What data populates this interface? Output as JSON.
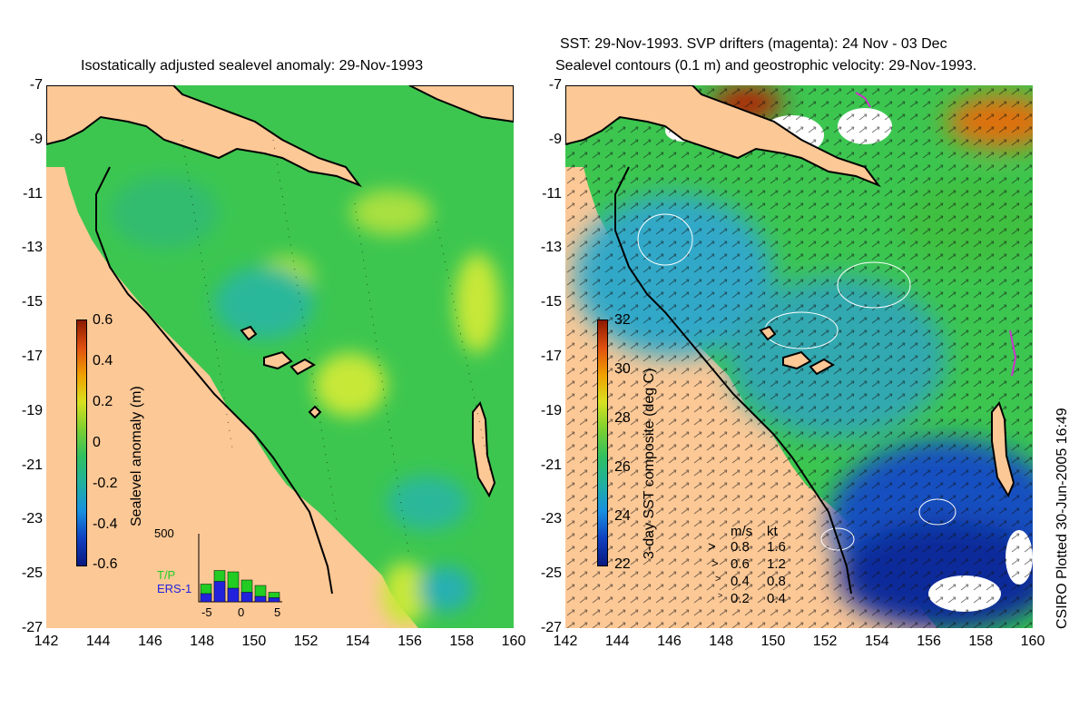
{
  "left_panel": {
    "title": "Isostatically adjusted sealevel anomaly: 29-Nov-1993",
    "colorbar": {
      "label": "Sealevel anomaly (m)",
      "ticks": [
        "0.6",
        "0.4",
        "0.2",
        "0",
        "-0.2",
        "-0.4",
        "-0.6"
      ]
    },
    "histogram": {
      "ymax_label": "500",
      "series": [
        "T/P",
        "ERS-1"
      ],
      "series_colors": [
        "#22cc22",
        "#2222dd"
      ],
      "x_ticks": [
        "-5",
        "0",
        "5"
      ],
      "bars_tp": [
        130,
        230,
        220,
        160,
        120,
        70
      ],
      "bars_ers": [
        60,
        150,
        100,
        70,
        40,
        30
      ]
    }
  },
  "right_panel": {
    "title_line1": "SST: 29-Nov-1993. SVP drifters (magenta): 24 Nov - 03 Dec",
    "title_line2": "Sealevel contours (0.1 m) and geostrophic velocity: 29-Nov-1993.",
    "colorbar": {
      "label": "3-day SST composite (deg C)",
      "ticks": [
        "32",
        "30",
        "28",
        "26",
        "24",
        "22"
      ]
    },
    "velocity_legend": {
      "headers": [
        "m/s",
        "kt"
      ],
      "rows": [
        [
          "0.8",
          "1.6"
        ],
        [
          "0.6",
          "1.2"
        ],
        [
          "0.4",
          "0.8"
        ],
        [
          "0.2",
          "0.4"
        ]
      ]
    }
  },
  "axes": {
    "y_ticks": [
      "-7",
      "-9",
      "-11",
      "-13",
      "-15",
      "-17",
      "-19",
      "-21",
      "-23",
      "-25",
      "-27"
    ],
    "x_ticks": [
      "142",
      "144",
      "146",
      "148",
      "150",
      "152",
      "154",
      "156",
      "158",
      "160"
    ]
  },
  "credit": "CSIRO Plotted 30-Jun-2005 16:49",
  "colors": {
    "land": "#fcc896",
    "ocean_green": "#3cc650",
    "ocean_blue": "#1a80d0",
    "deep_blue": "#0a2a9a"
  }
}
